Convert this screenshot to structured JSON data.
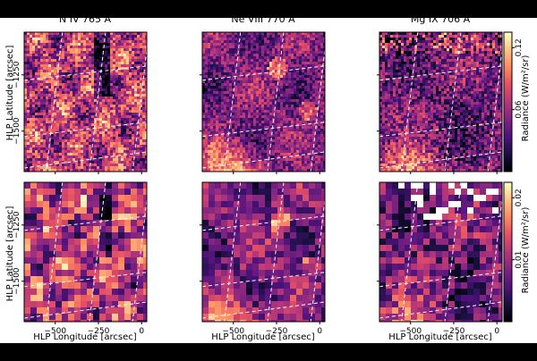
{
  "figure": {
    "titles": [
      "N IV 765 Å",
      "Ne VIII 770 Å",
      "Mg IX 706 Å"
    ],
    "ylabel": "HLP Latitude [arcsec]",
    "xlabel": "HLP Longitude [arcsec]",
    "xticks": [
      "−500",
      "−250",
      "0"
    ],
    "yticks": [
      "−1250",
      "−1500"
    ]
  },
  "colorbars": [
    {
      "row": "top",
      "label": "Radiance (W/m²/sr)",
      "ticks": [
        "0.06",
        "0.12"
      ],
      "range": [
        0,
        0.135
      ]
    },
    {
      "row": "bottom",
      "label": "Radiance (W/m²/sr)",
      "ticks": [
        "0.01",
        "0.02"
      ],
      "range": [
        0,
        0.0225
      ]
    }
  ],
  "chart_data": {
    "type": "heatmap",
    "colormap": "magma",
    "rows": [
      {
        "resolution": "full",
        "colorbar_ticks": [
          0.06,
          0.12
        ]
      },
      {
        "resolution": "binned",
        "colorbar_ticks": [
          0.01,
          0.02
        ]
      }
    ],
    "columns": [
      "N IV 765 Å",
      "Ne VIII 770 Å",
      "Mg IX 706 Å"
    ],
    "xlim": [
      -680,
      30
    ],
    "ylim": [
      -1680,
      -1060
    ],
    "xticks": [
      -500,
      -250,
      0
    ],
    "yticks": [
      -1250,
      -1500
    ],
    "grid": "dashed white longitude/latitude overlay"
  }
}
